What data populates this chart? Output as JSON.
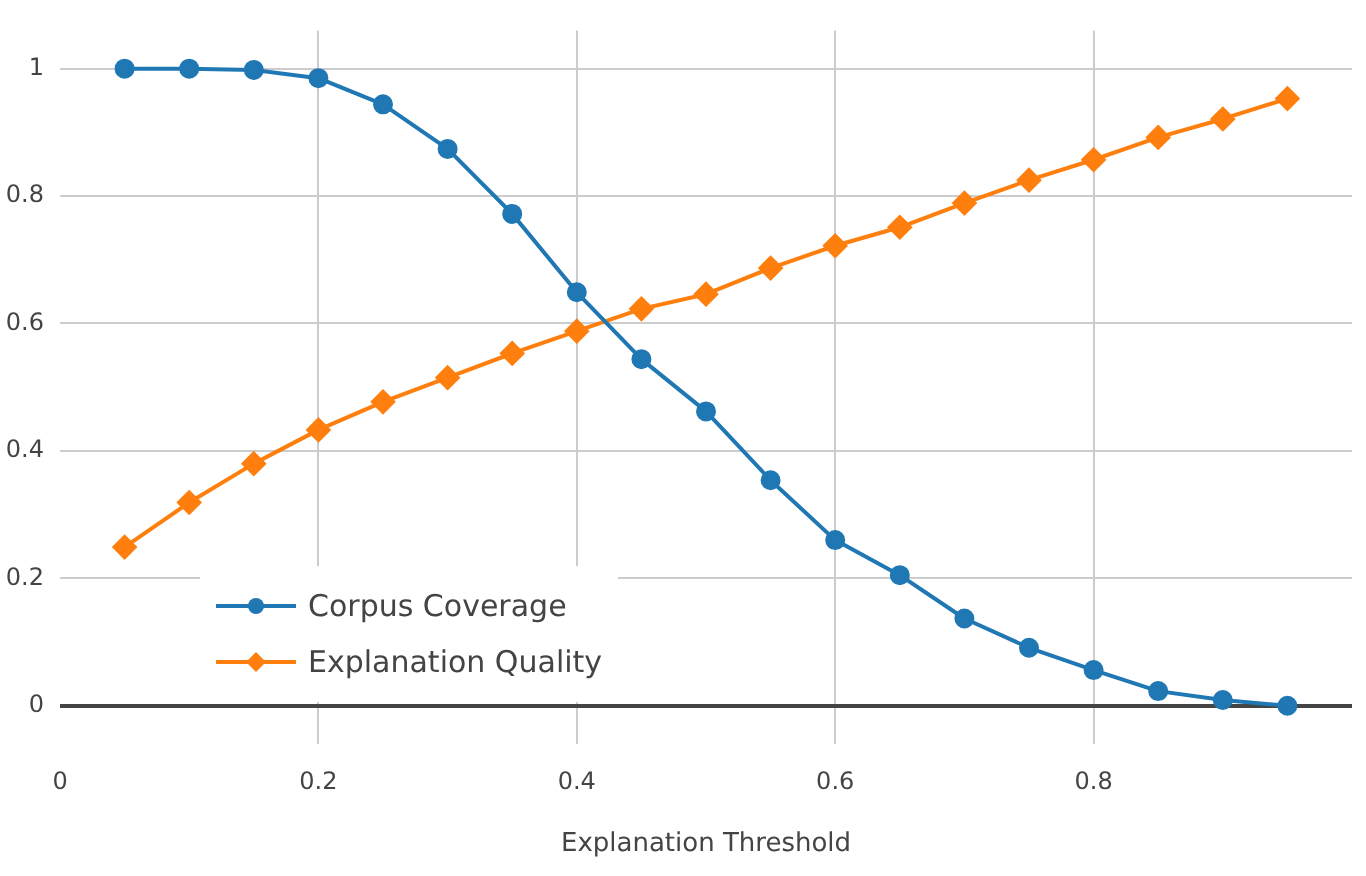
{
  "chart_data": {
    "type": "line",
    "xlabel": "Explanation Threshold",
    "x": [
      0.05,
      0.1,
      0.15,
      0.2,
      0.25,
      0.3,
      0.35,
      0.4,
      0.45,
      0.5,
      0.55,
      0.6,
      0.65,
      0.7,
      0.75,
      0.8,
      0.85,
      0.9,
      0.95
    ],
    "series": [
      {
        "name": "Corpus Coverage",
        "color": "#1f77b4",
        "marker": "circle",
        "values": [
          1.0,
          1.0,
          0.998,
          0.985,
          0.944,
          0.874,
          0.772,
          0.649,
          0.544,
          0.462,
          0.354,
          0.26,
          0.205,
          0.137,
          0.091,
          0.056,
          0.023,
          0.009,
          0.0
        ]
      },
      {
        "name": "Explanation Quality",
        "color": "#ff7f0e",
        "marker": "diamond",
        "values": [
          0.249,
          0.319,
          0.38,
          0.433,
          0.477,
          0.515,
          0.553,
          0.588,
          0.623,
          0.646,
          0.687,
          0.722,
          0.751,
          0.789,
          0.825,
          0.857,
          0.892,
          0.921,
          0.953
        ]
      }
    ],
    "xlim": [
      0,
      1
    ],
    "xticks": [
      0,
      0.2,
      0.4,
      0.6,
      0.8
    ],
    "ylim": [
      -0.06,
      1.06
    ],
    "yticks": [
      0,
      0.2,
      0.4,
      0.6,
      0.8,
      1
    ],
    "grid": true,
    "legend": "bottom left",
    "line_style": "solid"
  }
}
